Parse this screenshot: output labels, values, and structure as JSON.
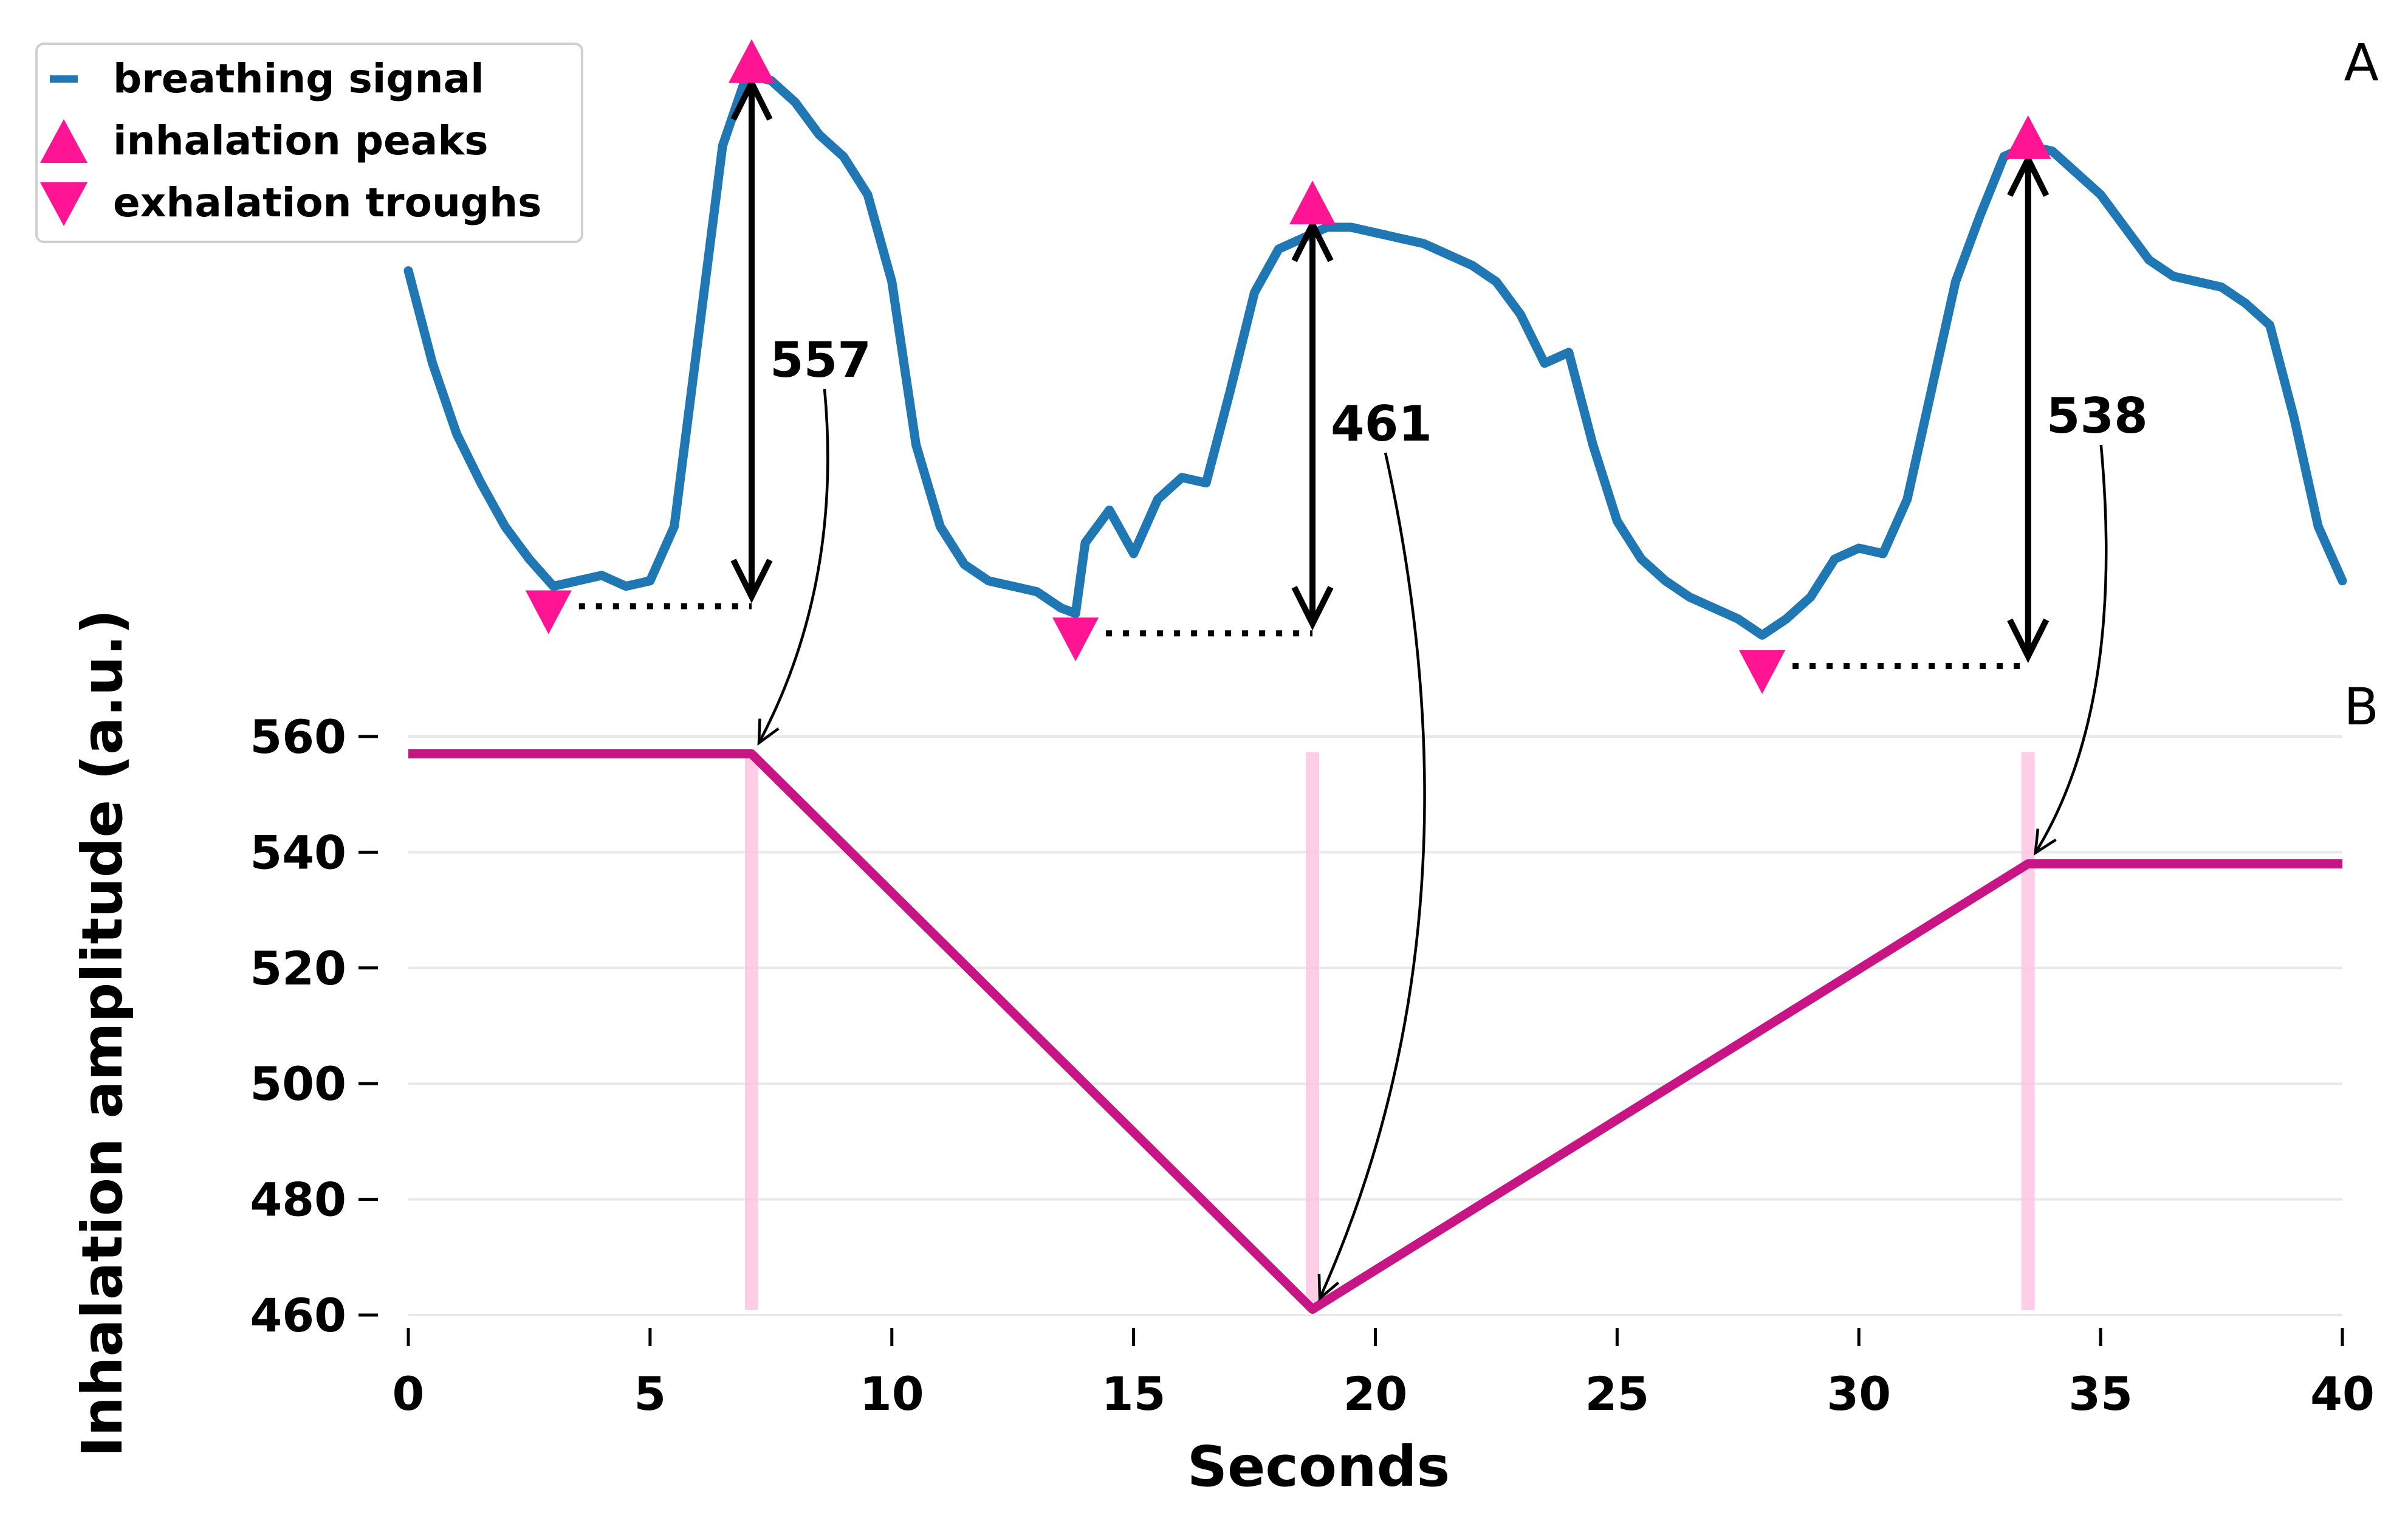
{
  "chart_data": [
    {
      "panel": "A",
      "type": "line",
      "legend_position": "top-left",
      "legend": [
        "breathing signal",
        "inhalation peaks",
        "exhalation troughs"
      ],
      "breathing_signal": {
        "x": [
          0,
          0.5,
          1,
          1.5,
          2,
          2.5,
          3,
          3.5,
          4,
          4.5,
          5,
          5.5,
          6,
          6.5,
          7,
          7.5,
          8,
          8.5,
          9,
          9.5,
          10,
          10.5,
          11,
          11.5,
          12,
          12.5,
          13,
          13.5,
          13.8,
          14,
          14.5,
          15,
          15.5,
          16,
          16.5,
          17,
          17.5,
          18,
          18.5,
          19,
          19.5,
          20,
          20.5,
          21,
          21.5,
          22,
          22.5,
          23,
          23.5,
          24,
          24.5,
          25,
          25.5,
          26,
          26.5,
          27,
          27.5,
          28,
          28.5,
          29,
          29.5,
          30,
          30.5,
          31,
          31.5,
          32,
          32.5,
          33,
          33.5,
          34,
          34.5,
          35,
          35.5,
          36,
          36.5,
          37,
          37.5,
          38,
          38.5,
          39,
          39.5,
          40
        ],
        "y": [
          0.72,
          0.55,
          0.42,
          0.33,
          0.25,
          0.19,
          0.14,
          0.15,
          0.16,
          0.14,
          0.15,
          0.25,
          0.6,
          0.95,
          1.08,
          1.07,
          1.03,
          0.97,
          0.93,
          0.86,
          0.7,
          0.4,
          0.25,
          0.18,
          0.15,
          0.14,
          0.13,
          0.1,
          0.09,
          0.22,
          0.28,
          0.2,
          0.3,
          0.34,
          0.33,
          0.5,
          0.68,
          0.76,
          0.78,
          0.8,
          0.8,
          0.79,
          0.78,
          0.77,
          0.75,
          0.73,
          0.7,
          0.64,
          0.55,
          0.57,
          0.4,
          0.26,
          0.19,
          0.15,
          0.12,
          0.1,
          0.08,
          0.05,
          0.08,
          0.12,
          0.19,
          0.21,
          0.2,
          0.3,
          0.5,
          0.7,
          0.82,
          0.93,
          0.95,
          0.94,
          0.9,
          0.86,
          0.8,
          0.74,
          0.71,
          0.7,
          0.69,
          0.66,
          0.62,
          0.45,
          0.25,
          0.15
        ]
      },
      "inhalation_peaks": [
        {
          "x": 7.1,
          "y": 1.09
        },
        {
          "x": 18.7,
          "y": 0.83
        },
        {
          "x": 33.5,
          "y": 0.95
        }
      ],
      "exhalation_troughs": [
        {
          "x": 2.9,
          "y": 0.11
        },
        {
          "x": 13.8,
          "y": 0.06
        },
        {
          "x": 28.0,
          "y": 0.0
        }
      ],
      "amplitude_labels": [
        "557",
        "461",
        "538"
      ]
    },
    {
      "panel": "B",
      "type": "line",
      "xlabel": "Seconds",
      "ylabel": "Inhalation amplitude (a.u.)",
      "xlim": [
        -2,
        40
      ],
      "ylim": [
        457,
        567
      ],
      "grid": true,
      "xticks": [
        "0",
        "5",
        "10",
        "15",
        "20",
        "25",
        "30",
        "35",
        "40"
      ],
      "yticks": [
        "460",
        "480",
        "500",
        "520",
        "540",
        "560"
      ],
      "x": [
        0,
        7.1,
        18.7,
        33.5,
        40
      ],
      "y": [
        557,
        557,
        461,
        538,
        538
      ],
      "peak_marker_x": [
        7.1,
        18.7,
        33.5
      ]
    }
  ],
  "panel_labels": {
    "top": "A",
    "bottom": "B"
  },
  "colors": {
    "signal": "#1f77b4",
    "markers": "#ff1493",
    "amplitude_line": "#c71585",
    "peak_bands": "#ffc0e0",
    "grid": "#e8e8e8"
  }
}
